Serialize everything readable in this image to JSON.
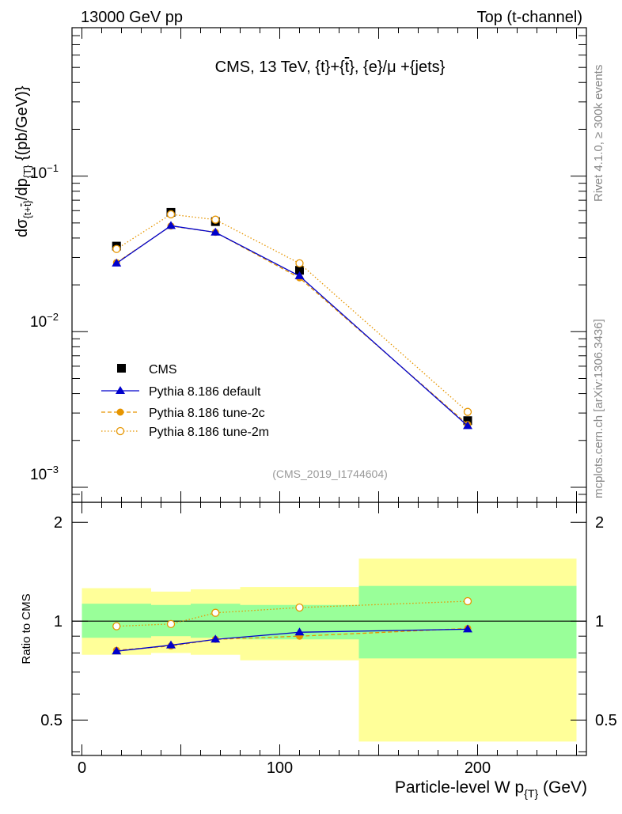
{
  "header": {
    "left": "13000 GeV pp",
    "right": "Top (t-channel)"
  },
  "side_text": {
    "rivet": "Rivet 4.1.0, ≥ 300k events",
    "source": "mcplots.cern.ch [arXiv:1306.3436]"
  },
  "colors": {
    "cms": "#000000",
    "default": "#0000cc",
    "tune2c": "#e69500",
    "tune2m": "#e69500",
    "band_inner": "#99ff99",
    "band_outer": "#ffff99"
  },
  "chart_data": [
    {
      "type": "scatter",
      "panel": "main",
      "title": "CMS, 13 TeV, {t}+{t̄}, {e}/μ +{jets}",
      "analysis_tag": "(CMS_2019_I1744604)",
      "ylabel": "dσ_{t+t̄}/dp_{T} {(pb/GeV)}",
      "yscale": "log",
      "ylim": [
        0.0008,
        0.9
      ],
      "xlim": [
        -5,
        255
      ],
      "y_tick_labels": [
        "10^-3",
        "10^-2",
        "10^-1"
      ],
      "legend": [
        "CMS",
        "Pythia 8.186 default",
        "Pythia 8.186 tune-2c",
        "Pythia 8.186 tune-2m"
      ],
      "x": [
        17.5,
        45,
        67.5,
        110,
        195
      ],
      "series": [
        {
          "name": "CMS",
          "values": [
            0.0355,
            0.0585,
            0.051,
            0.0248,
            0.00268
          ]
        },
        {
          "name": "Pythia 8.186 default",
          "values": [
            0.0275,
            0.048,
            0.0435,
            0.0228,
            0.00248
          ]
        },
        {
          "name": "Pythia 8.186 tune-2c",
          "values": [
            0.0278,
            0.0478,
            0.0435,
            0.0222,
            0.00253
          ]
        },
        {
          "name": "Pythia 8.186 tune-2m",
          "values": [
            0.034,
            0.0568,
            0.0525,
            0.0275,
            0.00305
          ]
        }
      ]
    },
    {
      "type": "line",
      "panel": "ratio",
      "ylabel": "Ratio to CMS",
      "xlabel": "Particle-level W p_{T} (GeV)",
      "ylim": [
        0.39,
        2.3
      ],
      "xlim": [
        -5,
        255
      ],
      "x_ticks": [
        0,
        100,
        200
      ],
      "x_tick_labels": [
        "0",
        "100",
        "200"
      ],
      "y_ticks": [
        0.5,
        1,
        2
      ],
      "y_tick_labels": [
        "0.5",
        "1",
        "2"
      ],
      "bins": [
        {
          "lo": 0,
          "hi": 35,
          "inner": [
            0.89,
            1.13
          ],
          "outer": [
            0.79,
            1.26
          ]
        },
        {
          "lo": 35,
          "hi": 55,
          "inner": [
            0.9,
            1.12
          ],
          "outer": [
            0.8,
            1.23
          ]
        },
        {
          "lo": 55,
          "hi": 80,
          "inner": [
            0.89,
            1.13
          ],
          "outer": [
            0.79,
            1.25
          ]
        },
        {
          "lo": 80,
          "hi": 140,
          "inner": [
            0.88,
            1.12
          ],
          "outer": [
            0.76,
            1.27
          ]
        },
        {
          "lo": 140,
          "hi": 250,
          "inner": [
            0.77,
            1.28
          ],
          "outer": [
            0.43,
            1.55
          ]
        }
      ],
      "x": [
        17.5,
        45,
        67.5,
        110,
        195
      ],
      "series": [
        {
          "name": "Pythia 8.186 default",
          "values": [
            0.81,
            0.845,
            0.88,
            0.925,
            0.945
          ]
        },
        {
          "name": "Pythia 8.186 tune-2c",
          "values": [
            0.815,
            0.84,
            0.88,
            0.9,
            0.95
          ]
        },
        {
          "name": "Pythia 8.186 tune-2m",
          "values": [
            0.965,
            0.98,
            1.06,
            1.1,
            1.15
          ]
        }
      ]
    }
  ]
}
